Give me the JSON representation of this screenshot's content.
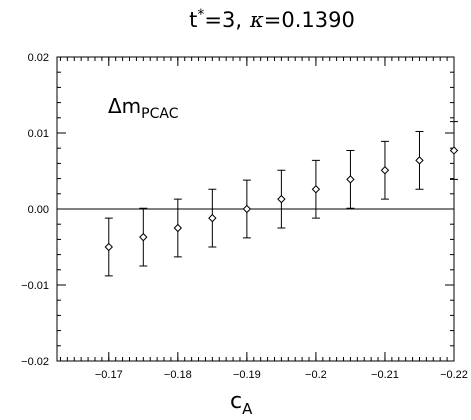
{
  "chart_data": {
    "type": "scatter",
    "title": {
      "t_part": "t",
      "t_sup": "*",
      "t_value": "=3,",
      "kappa_symbol": "κ",
      "kappa_value": "=0.1390"
    },
    "xlabel": {
      "main": "c",
      "sub": "A"
    },
    "annotation": {
      "main": "Δm",
      "sub": "PCAC"
    },
    "xlim": [
      -0.1625,
      -0.22
    ],
    "ylim": [
      -0.02,
      0.02
    ],
    "x_ticks": [
      {
        "value": -0.17,
        "label": "−0.17"
      },
      {
        "value": -0.18,
        "label": "−0.18"
      },
      {
        "value": -0.19,
        "label": "−0.19"
      },
      {
        "value": -0.2,
        "label": "−0.2"
      },
      {
        "value": -0.21,
        "label": "−0.21"
      },
      {
        "value": -0.22,
        "label": "−0.22"
      }
    ],
    "y_ticks": [
      {
        "value": 0.02,
        "label": "0.02"
      },
      {
        "value": 0.01,
        "label": "0.01"
      },
      {
        "value": 0.0,
        "label": "0.00"
      },
      {
        "value": -0.01,
        "label": "−0.01"
      },
      {
        "value": -0.02,
        "label": "−0.02"
      }
    ],
    "x_minor_step": 0.001,
    "y_minor_step": 0.002,
    "zero_line": true,
    "marker": "diamond",
    "series": [
      {
        "points": [
          {
            "x": -0.17,
            "y": -0.005,
            "err": 0.0038
          },
          {
            "x": -0.175,
            "y": -0.0037,
            "err": 0.0038
          },
          {
            "x": -0.18,
            "y": -0.0025,
            "err": 0.0038
          },
          {
            "x": -0.185,
            "y": -0.0012,
            "err": 0.0038
          },
          {
            "x": -0.19,
            "y": 0.0,
            "err": 0.0038
          },
          {
            "x": -0.195,
            "y": 0.0013,
            "err": 0.0038
          },
          {
            "x": -0.2,
            "y": 0.0026,
            "err": 0.0038
          },
          {
            "x": -0.205,
            "y": 0.0039,
            "err": 0.0038
          },
          {
            "x": -0.21,
            "y": 0.0051,
            "err": 0.0038
          },
          {
            "x": -0.215,
            "y": 0.0064,
            "err": 0.0038
          },
          {
            "x": -0.22,
            "y": 0.0077,
            "err": 0.0038
          }
        ]
      }
    ]
  }
}
